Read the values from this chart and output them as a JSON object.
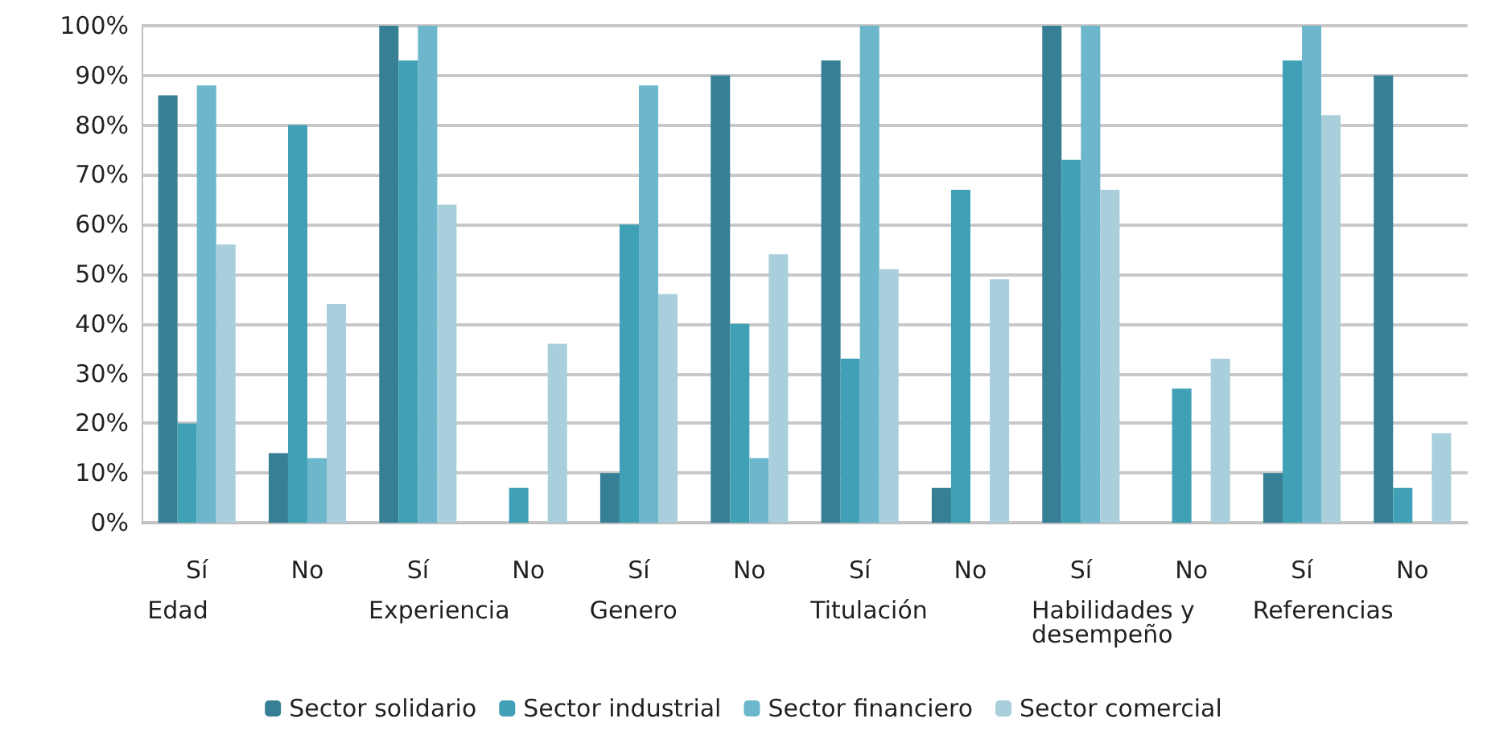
{
  "chart_data": {
    "type": "bar",
    "categories": [
      "Sí",
      "No",
      "Sí",
      "No",
      "Sí",
      "No",
      "Sí",
      "No",
      "Sí",
      "No",
      "Sí",
      "No"
    ],
    "annotations": [
      "Edad",
      "Experiencia",
      "Genero",
      "Titulación",
      "Habilidades y desempeño",
      "Referencias"
    ],
    "series": [
      {
        "name": "Sector solidario",
        "color": "#367f94",
        "values": [
          86,
          14,
          100,
          0,
          10,
          90,
          93,
          7,
          100,
          0,
          10,
          90
        ]
      },
      {
        "name": "Sector industrial",
        "color": "#40a1b6",
        "values": [
          20,
          80,
          93,
          7,
          60,
          40,
          33,
          67,
          73,
          27,
          93,
          7
        ]
      },
      {
        "name": "Sector financiero",
        "color": "#6cb7cb",
        "values": [
          88,
          13,
          100,
          0,
          88,
          13,
          100,
          0,
          100,
          0,
          100,
          0
        ]
      },
      {
        "name": "Sector comercial",
        "color": "#a8cfdb",
        "values": [
          56,
          44,
          64,
          36,
          46,
          54,
          51,
          49,
          67,
          33,
          82,
          18
        ]
      }
    ],
    "ylim": [
      0,
      100
    ],
    "yticks": [
      {
        "value": 0,
        "label": "0%"
      },
      {
        "value": 10,
        "label": "10%"
      },
      {
        "value": 20,
        "label": "20%"
      },
      {
        "value": 30,
        "label": "30%"
      },
      {
        "value": 40,
        "label": "40%"
      },
      {
        "value": 50,
        "label": "50%"
      },
      {
        "value": 60,
        "label": "60%"
      },
      {
        "value": 70,
        "label": "70%"
      },
      {
        "value": 80,
        "label": "80%"
      },
      {
        "value": 90,
        "label": "90%"
      },
      {
        "value": 100,
        "label": "100%"
      }
    ],
    "grid": "y",
    "legend": "bottom"
  }
}
